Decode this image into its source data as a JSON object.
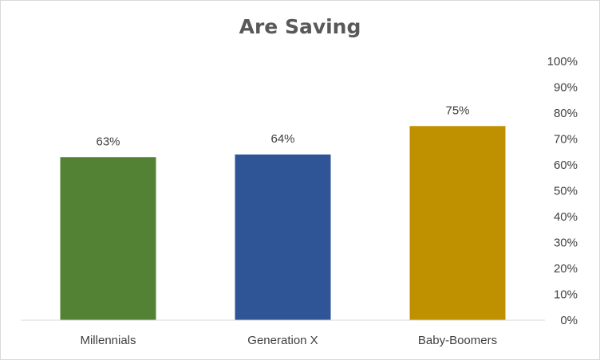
{
  "chart_data": {
    "type": "bar",
    "title": "Are Saving",
    "xlabel": "",
    "ylabel": "",
    "categories": [
      "Millennials",
      "Generation X",
      "Baby-Boomers"
    ],
    "values": [
      63,
      64,
      75
    ],
    "data_labels": [
      "63%",
      "64%",
      "75%"
    ],
    "colors": [
      "#548235",
      "#2f5597",
      "#bf9000"
    ],
    "ylim": [
      0,
      100
    ],
    "y_ticks": [
      0,
      10,
      20,
      30,
      40,
      50,
      60,
      70,
      80,
      90,
      100
    ],
    "y_tick_labels": [
      "0%",
      "10%",
      "20%",
      "30%",
      "40%",
      "50%",
      "60%",
      "70%",
      "80%",
      "90%",
      "100%"
    ],
    "y_axis_side": "right",
    "grid": false,
    "legend": "none"
  }
}
